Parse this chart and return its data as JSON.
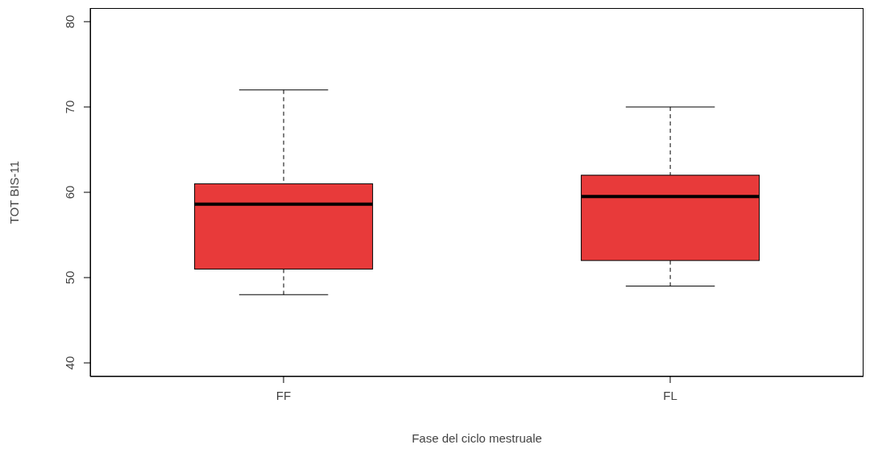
{
  "chart_data": {
    "type": "box",
    "xlabel": "Fase del ciclo mestruale",
    "ylabel": "TOT BIS-11",
    "categories": [
      "FF",
      "FL"
    ],
    "boxes": [
      {
        "low": 48,
        "q1": 51,
        "median": 58.6,
        "q3": 61,
        "high": 72
      },
      {
        "low": 49,
        "q1": 52,
        "median": 59.5,
        "q3": 62,
        "high": 70
      }
    ],
    "color": "#e83a3a",
    "ylim": [
      38.4,
      81.6
    ],
    "yticks": [
      40,
      50,
      60,
      70,
      80
    ],
    "grid": false
  }
}
